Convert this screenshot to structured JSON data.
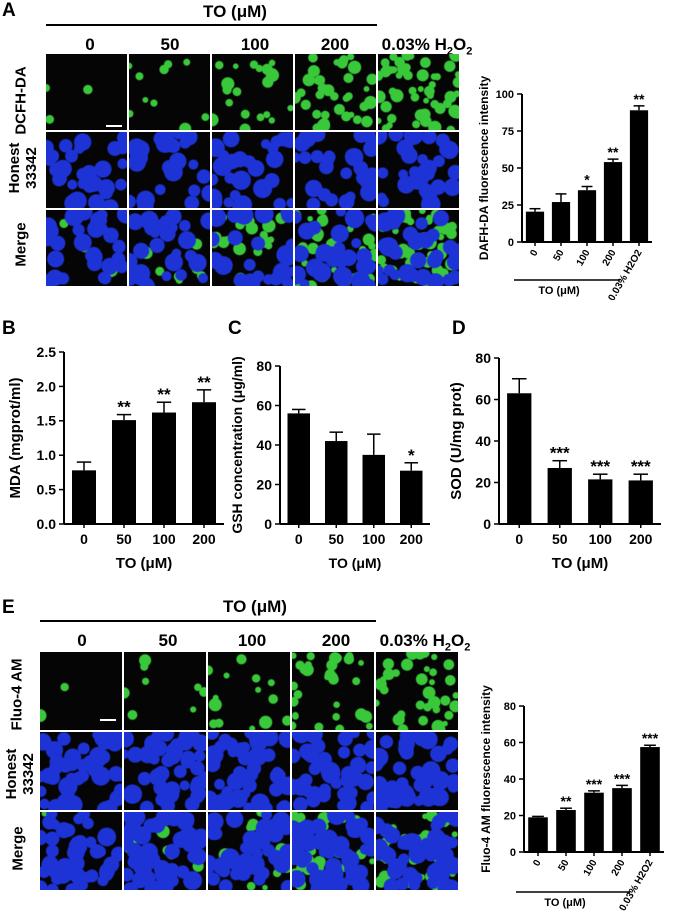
{
  "figure": {
    "panel_a": {
      "letter": "A",
      "group_label": "TO (μM)",
      "columns": [
        "0",
        "50",
        "100",
        "200",
        "0.03% H",
        "2",
        "O",
        "2"
      ],
      "rows": [
        "DCFH-DA",
        "Honest",
        "33342",
        "Merge"
      ]
    },
    "panel_e": {
      "letter": "E",
      "group_label": "TO (μM)",
      "columns": [
        "0",
        "50",
        "100",
        "200",
        "0.03% H",
        "2",
        "O",
        "2"
      ],
      "rows": [
        "Fluo-4 AM",
        "Honest",
        "33342",
        "Merge"
      ]
    },
    "letters": {
      "b": "B",
      "c": "C",
      "d": "D"
    }
  },
  "chart_data": [
    {
      "id": "A-bar",
      "type": "bar",
      "categories": [
        "0",
        "50",
        "100",
        "200",
        "0.03% H2O2"
      ],
      "values": [
        20.5,
        27,
        35,
        54,
        89
      ],
      "errors": [
        2,
        5.5,
        2.5,
        2,
        3
      ],
      "significance": [
        "",
        "",
        "*",
        "**",
        "**"
      ],
      "ylabel": "DAFH-DA fluorescence intensity",
      "xlabel": "TO (μM)",
      "ylim": [
        0,
        100
      ],
      "yticks": [
        "0",
        "25",
        "50",
        "75",
        "100"
      ]
    },
    {
      "id": "B",
      "type": "bar",
      "categories": [
        "0",
        "50",
        "100",
        "200"
      ],
      "values": [
        0.78,
        1.51,
        1.62,
        1.77
      ],
      "errors": [
        0.12,
        0.08,
        0.15,
        0.18
      ],
      "significance": [
        "",
        "**",
        "**",
        "**"
      ],
      "ylabel": "MDA (mgprot/ml)",
      "xlabel": "TO (μM)",
      "ylim": [
        0,
        2.5
      ],
      "yticks": [
        "0.0",
        "0.5",
        "1.0",
        "1.5",
        "2.0",
        "2.5"
      ]
    },
    {
      "id": "C",
      "type": "bar",
      "categories": [
        "0",
        "50",
        "100",
        "200"
      ],
      "values": [
        56,
        42,
        35,
        27
      ],
      "errors": [
        2,
        4.5,
        10.5,
        4
      ],
      "significance": [
        "",
        "",
        "",
        "*"
      ],
      "ylabel": "GSH concentration (μg/ml)",
      "xlabel": "TO (μM)",
      "ylim": [
        0,
        80
      ],
      "yticks": [
        "0",
        "20",
        "40",
        "60",
        "80"
      ]
    },
    {
      "id": "D",
      "type": "bar",
      "categories": [
        "0",
        "50",
        "100",
        "200"
      ],
      "values": [
        63,
        27,
        21.5,
        21
      ],
      "errors": [
        7,
        3.5,
        2.5,
        3
      ],
      "significance": [
        "",
        "***",
        "***",
        "***"
      ],
      "ylabel": "SOD (U/mg prot)",
      "xlabel": "TO (μM)",
      "ylim": [
        0,
        80
      ],
      "yticks": [
        "0",
        "20",
        "40",
        "60",
        "80"
      ]
    },
    {
      "id": "E-bar",
      "type": "bar",
      "categories": [
        "0",
        "50",
        "100",
        "200",
        "0.03% H2O2"
      ],
      "values": [
        19,
        23,
        32.5,
        35,
        57.5
      ],
      "errors": [
        0.5,
        1,
        1,
        1.5,
        1
      ],
      "significance": [
        "",
        "**",
        "***",
        "***",
        "***"
      ],
      "ylabel": "Fluo-4 AM fluorescence intensity",
      "xlabel": "TO (μM)",
      "ylim": [
        0,
        80
      ],
      "yticks": [
        "0",
        "20",
        "40",
        "60",
        "80"
      ]
    }
  ],
  "colors": {
    "green": "#39c83a",
    "blue": "#1d33d6",
    "bar": "#000000",
    "background": "#050505"
  }
}
